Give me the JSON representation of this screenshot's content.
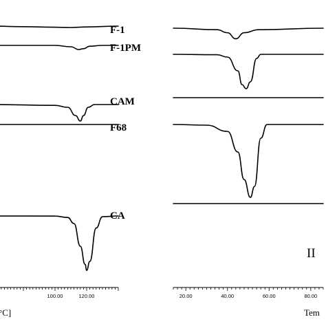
{
  "chart_data": [
    {
      "type": "line",
      "panel": "left",
      "xlabel": "°C]",
      "x_tick_labels": [
        "100.00",
        "120.00"
      ],
      "xlim": [
        60,
        140
      ],
      "series": [
        {
          "name": "F-1",
          "x": [
            60,
            80,
            100,
            110,
            120,
            140
          ],
          "y": [
            0,
            -0.2,
            -0.4,
            -0.5,
            -0.3,
            0
          ]
        },
        {
          "name": "F-1PM",
          "x": [
            60,
            100,
            110,
            115,
            118,
            122,
            130,
            140
          ],
          "y": [
            0,
            0,
            -0.5,
            -1.5,
            -1.2,
            -0.3,
            0,
            0
          ]
        },
        {
          "name": "CAM",
          "x": [
            60,
            100,
            108,
            113,
            116,
            118,
            121,
            125,
            140
          ],
          "y": [
            0,
            -0.3,
            -1,
            -4,
            -6,
            -4,
            -1,
            0,
            0
          ]
        },
        {
          "name": "F68",
          "x": [
            60,
            140
          ],
          "y": [
            0,
            0
          ]
        },
        {
          "name": "CA",
          "x": [
            60,
            100,
            108,
            112,
            116,
            119,
            120,
            122,
            126,
            130,
            140
          ],
          "y": [
            0,
            -0.1,
            -1,
            -5,
            -20,
            -32,
            -36,
            -30,
            -8,
            -0.5,
            0
          ]
        }
      ]
    },
    {
      "type": "line",
      "panel": "right",
      "panel_label": "II",
      "xlabel": "Tem",
      "x_tick_labels": [
        "20.00",
        "40.00",
        "60.00",
        "80.00"
      ],
      "xlim": [
        14,
        86
      ],
      "series": [
        {
          "x": [
            14,
            35,
            40,
            44,
            48,
            55,
            86
          ],
          "y": [
            0,
            -1,
            -3,
            -7,
            -3,
            -1,
            0
          ]
        },
        {
          "x": [
            14,
            35,
            40,
            45,
            47,
            49,
            51,
            54,
            56,
            86
          ],
          "y": [
            0,
            -0.3,
            -2,
            -12,
            -22,
            -25,
            -20,
            -3,
            0,
            0
          ]
        },
        {
          "x": [
            14,
            86
          ],
          "y": [
            0,
            0
          ]
        },
        {
          "x": [
            14,
            30,
            40,
            45,
            48,
            51,
            53,
            56,
            59,
            86
          ],
          "y": [
            0,
            -0.5,
            -5,
            -20,
            -40,
            -53,
            -45,
            -10,
            0,
            0
          ]
        },
        {
          "x": [
            14,
            86
          ],
          "y": [
            0,
            0
          ]
        }
      ]
    }
  ]
}
